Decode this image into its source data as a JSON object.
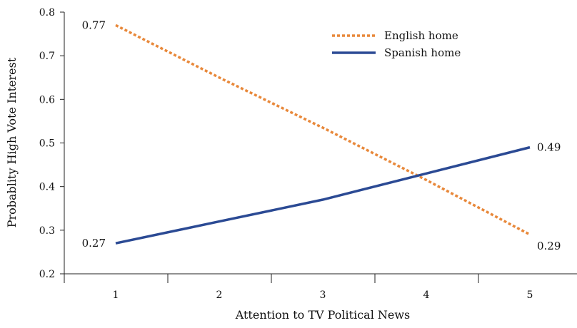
{
  "chart_data": {
    "type": "line",
    "xlabel": "Attention to TV Political News",
    "ylabel": "Probablity High Vote Interest",
    "x": [
      1,
      2,
      3,
      4,
      5
    ],
    "x_ticks": [
      "1",
      "2",
      "3",
      "4",
      "5"
    ],
    "y_ticks": [
      "0.2",
      "0.3",
      "0.4",
      "0.5",
      "0.6",
      "0.7",
      "0.8"
    ],
    "ylim": [
      0.2,
      0.8
    ],
    "grid": false,
    "legend_position": "top-right",
    "series": [
      {
        "name": "English home",
        "style": "dotted",
        "color": "#E8883A",
        "values": [
          0.77,
          0.65,
          0.535,
          0.415,
          0.29
        ],
        "start_label": "0.77",
        "end_label": "0.29"
      },
      {
        "name": "Spanish home",
        "style": "solid",
        "color": "#2B4A94",
        "values": [
          0.27,
          0.32,
          0.37,
          0.43,
          0.49
        ],
        "start_label": "0.27",
        "end_label": "0.49"
      }
    ]
  }
}
